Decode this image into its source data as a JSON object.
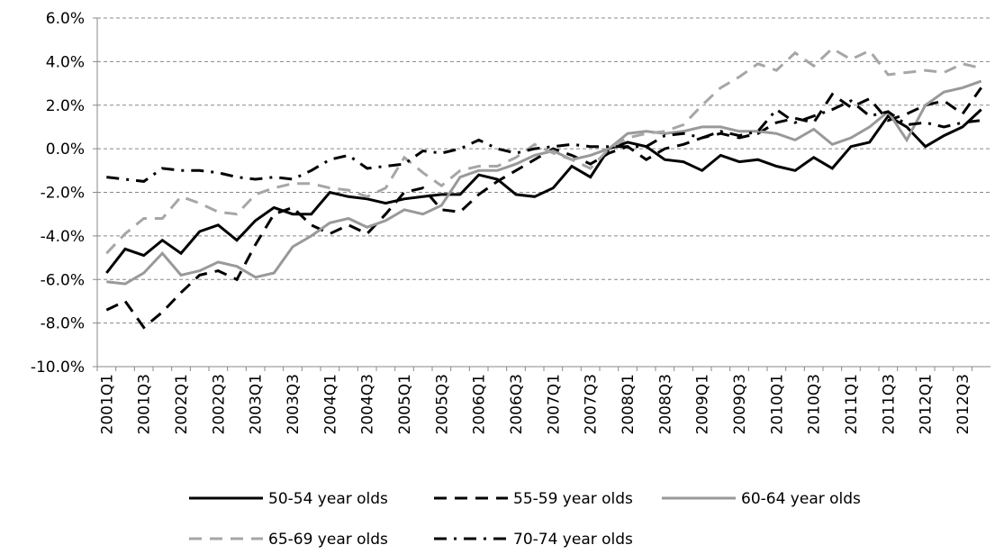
{
  "chart_data": {
    "type": "line",
    "categories": [
      "2001Q1",
      null,
      "2001Q3",
      null,
      "2002Q1",
      null,
      "2002Q3",
      null,
      "2003Q1",
      null,
      "2003Q3",
      null,
      "2004Q1",
      null,
      "2004Q3",
      null,
      "2005Q1",
      null,
      "2005Q3",
      null,
      "2006Q1",
      null,
      "2006Q3",
      null,
      "2007Q1",
      null,
      "2007Q3",
      null,
      "2008Q1",
      null,
      "2008Q3",
      null,
      "2009Q1",
      null,
      "2009Q3",
      null,
      "2010Q1",
      null,
      "2010Q3",
      null,
      "2011Q1",
      null,
      "2011Q3",
      null,
      "2012Q1",
      null,
      "2012Q3",
      null
    ],
    "ylim": [
      -10,
      6
    ],
    "yticks": [
      {
        "value": -10,
        "label": "-10.0%"
      },
      {
        "value": -8,
        "label": "-8.0%"
      },
      {
        "value": -6,
        "label": "-6.0%"
      },
      {
        "value": -4,
        "label": "-4.0%"
      },
      {
        "value": -2,
        "label": "-2.0%"
      },
      {
        "value": 0,
        "label": "0.0%"
      },
      {
        "value": 2,
        "label": "2.0%"
      },
      {
        "value": 4,
        "label": "4.0%"
      },
      {
        "value": 6,
        "label": "6.0%"
      }
    ],
    "grid": true,
    "legend": "bottom",
    "series": [
      {
        "name": "50-54 year olds",
        "color": "#000000",
        "style": "solid",
        "values": [
          -5.7,
          -4.6,
          -4.9,
          -4.2,
          -4.8,
          -3.8,
          -3.5,
          -4.2,
          -3.3,
          -2.7,
          -3.0,
          -3.0,
          -2.0,
          -2.2,
          -2.3,
          -2.5,
          -2.3,
          -2.2,
          -2.1,
          -2.1,
          -1.2,
          -1.4,
          -2.1,
          -2.2,
          -1.8,
          -0.8,
          -1.3,
          0.0,
          0.3,
          0.1,
          -0.5,
          -0.6,
          -1.0,
          -0.3,
          -0.6,
          -0.5,
          -0.8,
          -1.0,
          -0.4,
          -0.9,
          0.1,
          0.3,
          1.5,
          1.0,
          0.1,
          0.6,
          1.0,
          1.8
        ]
      },
      {
        "name": "55-59 year olds",
        "color": "#000000",
        "style": "dashed",
        "values": [
          -7.4,
          -7.0,
          -8.2,
          -7.5,
          -6.6,
          -5.8,
          -5.6,
          -6.0,
          -4.4,
          -3.0,
          -2.7,
          -3.5,
          -3.9,
          -3.5,
          -3.9,
          -3.0,
          -2.0,
          -1.8,
          -2.8,
          -2.9,
          -2.1,
          -1.5,
          -1.0,
          -0.5,
          0.0,
          -0.3,
          -0.7,
          -0.2,
          0.1,
          -0.5,
          0.0,
          0.2,
          0.5,
          0.7,
          0.5,
          0.7,
          1.2,
          1.4,
          1.2,
          2.5,
          1.9,
          2.3,
          1.3,
          1.6,
          2.0,
          2.2,
          1.6,
          2.8
        ]
      },
      {
        "name": "60-64 year olds",
        "color": "#999999",
        "style": "solid",
        "values": [
          -6.1,
          -6.2,
          -5.7,
          -4.8,
          -5.8,
          -5.6,
          -5.2,
          -5.4,
          -5.9,
          -5.7,
          -4.5,
          -4.0,
          -3.4,
          -3.2,
          -3.6,
          -3.3,
          -2.8,
          -3.0,
          -2.6,
          -1.3,
          -1.0,
          -1.0,
          -0.7,
          -0.3,
          -0.1,
          -0.5,
          -0.3,
          0.0,
          0.7,
          0.8,
          0.7,
          0.8,
          1.0,
          1.0,
          0.8,
          0.8,
          0.7,
          0.4,
          0.9,
          0.2,
          0.5,
          1.0,
          1.7,
          0.4,
          2.0,
          2.6,
          2.8,
          3.1
        ]
      },
      {
        "name": "65-69 year olds",
        "color": "#a6a6a6",
        "style": "dashed",
        "values": [
          -4.8,
          -3.9,
          -3.2,
          -3.2,
          -2.2,
          -2.5,
          -2.9,
          -3.0,
          -2.1,
          -1.8,
          -1.6,
          -1.6,
          -1.8,
          -1.9,
          -2.2,
          -1.8,
          -0.4,
          -1.1,
          -1.7,
          -1.0,
          -0.8,
          -0.8,
          -0.4,
          0.2,
          -0.2,
          -0.5,
          -0.9,
          0.0,
          0.5,
          0.7,
          0.8,
          1.1,
          2.0,
          2.8,
          3.3,
          3.9,
          3.6,
          4.4,
          3.8,
          4.6,
          4.1,
          4.5,
          3.4,
          3.5,
          3.6,
          3.5,
          3.9,
          3.7
        ]
      },
      {
        "name": "70-74 year olds",
        "color": "#000000",
        "style": "dashdot",
        "values": [
          -1.3,
          -1.4,
          -1.5,
          -0.9,
          -1.0,
          -1.0,
          -1.1,
          -1.3,
          -1.4,
          -1.3,
          -1.4,
          -1.0,
          -0.5,
          -0.3,
          -0.9,
          -0.8,
          -0.7,
          -0.1,
          -0.2,
          0.0,
          0.4,
          0.0,
          -0.2,
          0.0,
          0.1,
          0.2,
          0.1,
          0.1,
          0.1,
          0.1,
          0.6,
          0.7,
          0.5,
          0.8,
          0.6,
          0.8,
          1.8,
          1.2,
          1.5,
          1.8,
          2.2,
          1.5,
          1.7,
          1.1,
          1.2,
          1.0,
          1.2,
          1.3
        ]
      }
    ]
  }
}
